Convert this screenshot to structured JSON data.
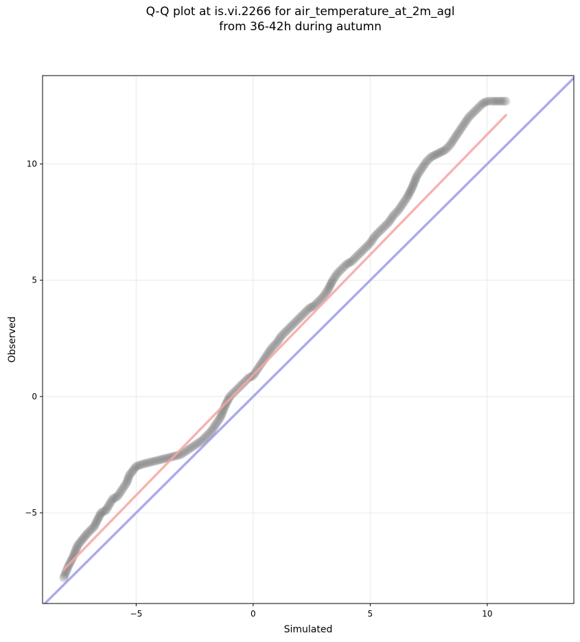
{
  "title_line1": "Q-Q plot at is.vi.2266 for air_temperature_at_2m_agl",
  "title_line2": "from 36-42h during autumn",
  "chart_data": {
    "type": "scatter",
    "title": "Q-Q plot at is.vi.2266 for air_temperature_at_2m_agl\nfrom 36-42h during autumn",
    "xlabel": "Simulated",
    "ylabel": "Observed",
    "xlim": [
      -9.0,
      13.7
    ],
    "ylim": [
      -8.9,
      13.8
    ],
    "xticks": [
      -5,
      0,
      5,
      10
    ],
    "xtick_labels": [
      "−5",
      "0",
      "5",
      "10"
    ],
    "yticks": [
      -5,
      0,
      5,
      10
    ],
    "ytick_labels": [
      "−5",
      "0",
      "5",
      "10"
    ],
    "grid": true,
    "point_color": "#555555",
    "quantiles": {
      "x": [
        -8.1,
        -7.9,
        -7.7,
        -7.5,
        -7.1,
        -6.8,
        -6.5,
        -6.3,
        -6.0,
        -5.8,
        -5.6,
        -5.4,
        -5.3,
        -5.0,
        -4.7,
        -4.3,
        -3.9,
        -3.5,
        -3.1,
        -2.8,
        -2.5,
        -2.2,
        -2.0,
        -1.8,
        -1.6,
        -1.4,
        -1.2,
        -1.0,
        -0.8,
        -0.6,
        -0.4,
        -0.2,
        0.0,
        0.2,
        0.4,
        0.6,
        0.8,
        1.0,
        1.2,
        1.4,
        1.6,
        1.8,
        2.0,
        2.2,
        2.4,
        2.6,
        2.8,
        3.0,
        3.2,
        3.4,
        3.6,
        3.8,
        4.0,
        4.2,
        4.4,
        4.6,
        4.8,
        5.0,
        5.2,
        5.4,
        5.6,
        5.8,
        6.0,
        6.2,
        6.4,
        6.6,
        6.8,
        7.0,
        7.2,
        7.4,
        7.6,
        7.8,
        8.0,
        8.2,
        8.4,
        8.6,
        8.8,
        9.0,
        9.2,
        9.4,
        9.6,
        9.8,
        10.0,
        10.2,
        10.5,
        10.8
      ],
      "y": [
        -7.8,
        -7.3,
        -6.9,
        -6.4,
        -5.9,
        -5.6,
        -5.0,
        -4.9,
        -4.4,
        -4.3,
        -4.0,
        -3.7,
        -3.4,
        -3.0,
        -2.9,
        -2.8,
        -2.7,
        -2.6,
        -2.5,
        -2.3,
        -2.1,
        -1.9,
        -1.7,
        -1.5,
        -1.2,
        -0.9,
        -0.4,
        0.0,
        0.2,
        0.4,
        0.6,
        0.8,
        0.9,
        1.2,
        1.5,
        1.8,
        2.1,
        2.3,
        2.6,
        2.8,
        3.0,
        3.2,
        3.4,
        3.6,
        3.8,
        3.9,
        4.1,
        4.3,
        4.6,
        5.0,
        5.3,
        5.5,
        5.7,
        5.8,
        6.0,
        6.2,
        6.4,
        6.6,
        6.9,
        7.1,
        7.3,
        7.5,
        7.8,
        8.0,
        8.3,
        8.6,
        9.0,
        9.5,
        9.8,
        10.1,
        10.3,
        10.4,
        10.5,
        10.6,
        10.8,
        11.1,
        11.4,
        11.7,
        12.0,
        12.2,
        12.4,
        12.6,
        12.7,
        12.7,
        12.7,
        12.7
      ]
    },
    "fit_line": {
      "color": "#f4a6a6",
      "x": [
        -8.1,
        10.8
      ],
      "y": [
        -7.45,
        12.1
      ]
    },
    "identity_line": {
      "color": "#aaaaee",
      "x": [
        -9.0,
        13.7
      ],
      "y": [
        -9.0,
        13.7
      ]
    }
  }
}
